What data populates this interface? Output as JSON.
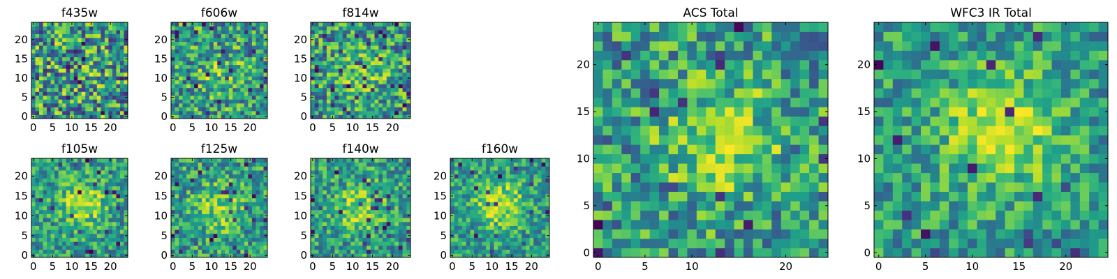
{
  "figure": {
    "background": "#ffffff",
    "colormap": "viridis"
  },
  "chart_data": [
    {
      "type": "heatmap",
      "title": "f435w",
      "xticks": [
        0,
        5,
        10,
        15,
        20
      ],
      "yticks": [
        0,
        5,
        10,
        15,
        20
      ],
      "xlim": [
        -0.5,
        24.5
      ],
      "ylim": [
        -0.5,
        24.5
      ],
      "grid_size": 25,
      "blob_center": [
        13,
        11
      ],
      "blob_strength": 0.05,
      "noise_seed": 435,
      "noise_level": 0.5,
      "dark_fraction": 0.06
    },
    {
      "type": "heatmap",
      "title": "f606w",
      "xticks": [
        0,
        5,
        10,
        15,
        20
      ],
      "yticks": [
        0,
        5,
        10,
        15,
        20
      ],
      "xlim": [
        -0.5,
        24.5
      ],
      "ylim": [
        -0.5,
        24.5
      ],
      "grid_size": 25,
      "blob_center": [
        12,
        11
      ],
      "blob_strength": 0.18,
      "noise_seed": 606,
      "noise_level": 0.42,
      "dark_fraction": 0.05
    },
    {
      "type": "heatmap",
      "title": "f814w",
      "xticks": [
        0,
        5,
        10,
        15,
        20
      ],
      "yticks": [
        0,
        5,
        10,
        15,
        20
      ],
      "xlim": [
        -0.5,
        24.5
      ],
      "ylim": [
        -0.5,
        24.5
      ],
      "grid_size": 25,
      "blob_center": [
        13,
        12
      ],
      "blob_strength": 0.22,
      "noise_seed": 814,
      "noise_level": 0.42,
      "dark_fraction": 0.05
    },
    {
      "type": "heatmap",
      "title": "f105w",
      "xticks": [
        0,
        5,
        10,
        15,
        20
      ],
      "yticks": [
        0,
        5,
        10,
        15,
        20
      ],
      "xlim": [
        -0.5,
        24.5
      ],
      "ylim": [
        -0.5,
        24.5
      ],
      "grid_size": 25,
      "blob_center": [
        13,
        13
      ],
      "blob_strength": 0.35,
      "noise_seed": 105,
      "noise_level": 0.32,
      "dark_fraction": 0.03
    },
    {
      "type": "heatmap",
      "title": "f125w",
      "xticks": [
        0,
        5,
        10,
        15,
        20
      ],
      "yticks": [
        0,
        5,
        10,
        15,
        20
      ],
      "xlim": [
        -0.5,
        24.5
      ],
      "ylim": [
        -0.5,
        24.5
      ],
      "grid_size": 25,
      "blob_center": [
        12,
        12
      ],
      "blob_strength": 0.3,
      "noise_seed": 125,
      "noise_level": 0.35,
      "dark_fraction": 0.04
    },
    {
      "type": "heatmap",
      "title": "f140w",
      "xticks": [
        0,
        5,
        10,
        15,
        20
      ],
      "yticks": [
        0,
        5,
        10,
        15,
        20
      ],
      "xlim": [
        -0.5,
        24.5
      ],
      "ylim": [
        -0.5,
        24.5
      ],
      "grid_size": 25,
      "blob_center": [
        12,
        12
      ],
      "blob_strength": 0.32,
      "noise_seed": 140,
      "noise_level": 0.34,
      "dark_fraction": 0.04
    },
    {
      "type": "heatmap",
      "title": "f160w",
      "xticks": [
        0,
        5,
        10,
        15,
        20
      ],
      "yticks": [
        0,
        5,
        10,
        15,
        20
      ],
      "xlim": [
        -0.5,
        24.5
      ],
      "ylim": [
        -0.5,
        24.5
      ],
      "grid_size": 25,
      "blob_center": [
        12,
        13
      ],
      "blob_strength": 0.4,
      "noise_seed": 160,
      "noise_level": 0.3,
      "dark_fraction": 0.03
    },
    {
      "type": "heatmap",
      "title": "ACS Total",
      "xticks": [
        0,
        5,
        10,
        20
      ],
      "yticks": [
        0,
        5,
        10,
        15,
        20
      ],
      "xlim": [
        -0.5,
        24.5
      ],
      "ylim": [
        -0.5,
        24.5
      ],
      "grid_size": 25,
      "blob_center": [
        13,
        12
      ],
      "blob_strength": 0.35,
      "noise_seed": 777,
      "noise_level": 0.38,
      "dark_fraction": 0.035
    },
    {
      "type": "heatmap",
      "title": "WFC3 IR Total",
      "xticks": [
        0,
        5,
        10,
        15,
        20
      ],
      "yticks": [
        0,
        5,
        10,
        15,
        20
      ],
      "xlim": [
        -0.5,
        24.5
      ],
      "ylim": [
        -0.5,
        24.5
      ],
      "grid_size": 25,
      "blob_center": [
        13,
        13
      ],
      "blob_strength": 0.45,
      "noise_seed": 999,
      "noise_level": 0.3,
      "dark_fraction": 0.025
    }
  ]
}
